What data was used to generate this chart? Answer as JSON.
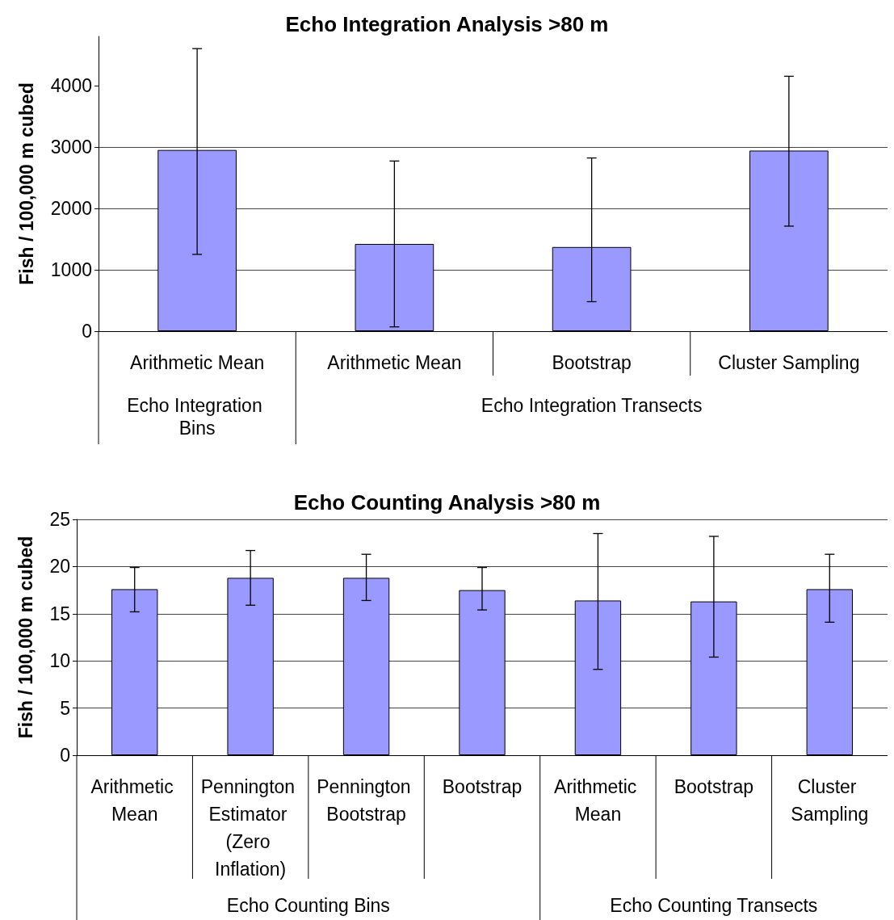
{
  "chart_data": [
    {
      "type": "bar",
      "title": "Echo Integration Analysis >80 m",
      "ylabel": "Fish / 100,000 m cubed",
      "categories": [
        "Arithmetic Mean",
        "Arithmetic Mean",
        "Bootstrap",
        "Cluster Sampling"
      ],
      "values": [
        2950,
        1420,
        1370,
        2940
      ],
      "errors": [
        [
          1250,
          4600
        ],
        [
          70,
          2770
        ],
        [
          480,
          2820
        ],
        [
          1710,
          4150
        ]
      ],
      "color": "#9999ff",
      "ylim": [
        0,
        4800
      ],
      "yticks": [
        0,
        1000,
        2000,
        3000,
        4000
      ],
      "grid": "y",
      "annotations": [
        "Echo Integration Bins",
        "Echo Integration Transects"
      ]
    },
    {
      "type": "bar",
      "title": "Echo Counting Analysis >80 m",
      "ylabel": "Fish / 100,000 m cubed",
      "categories": [
        "Arithmetic Mean",
        "Pennington Estimator (Zero Inflation)",
        "Pennington Bootstrap",
        "Bootstrap",
        "Arithmetic Mean",
        "Bootstrap",
        "Cluster Sampling"
      ],
      "values": [
        17.6,
        18.8,
        18.8,
        17.5,
        16.4,
        16.3,
        17.6
      ],
      "errors": [
        [
          15.2,
          19.9
        ],
        [
          15.9,
          21.7
        ],
        [
          16.4,
          21.3
        ],
        [
          15.4,
          19.9
        ],
        [
          9.1,
          23.5
        ],
        [
          10.4,
          23.2
        ],
        [
          14.1,
          21.3
        ]
      ],
      "color": "#9999ff",
      "ylim": [
        0,
        25
      ],
      "yticks": [
        0,
        5,
        10,
        15,
        20,
        25
      ],
      "grid": "y",
      "annotations": [
        "Echo Counting Bins",
        "Echo Counting Transects"
      ]
    }
  ]
}
